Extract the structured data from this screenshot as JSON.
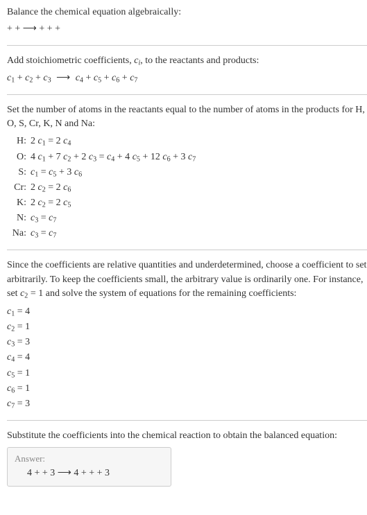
{
  "intro1": "Balance the chemical equation algebraically:",
  "intro_eq": " +  +  ⟶  +  +  + ",
  "add_line": "Add stoichiometric coefficients, ",
  "add_line2": ", to the reactants and products:",
  "ci_c": "c",
  "ci_i": "i",
  "stoich_eq_parts": {
    "c": "c",
    "plus": " + ",
    "arrow": "⟶"
  },
  "set_line1": "Set the number of atoms in the reactants equal to the number of atoms in the products for H, O, S, Cr, K, N and Na:",
  "atoms": [
    {
      "el": "H:",
      "eq": "2 c₁ = 2 c₄",
      "plain_left": "2 ",
      "v1": "1",
      "mid": " = 2 ",
      "v2": "4",
      "rest": ""
    },
    {
      "el": "O:",
      "text": "4 c₁ + 7 c₂ + 2 c₃ = c₄ + 4 c₅ + 12 c₆ + 3 c₇"
    },
    {
      "el": "S:",
      "text": "c₁ = c₅ + 3 c₆"
    },
    {
      "el": "Cr:",
      "text": "2 c₂ = 2 c₆"
    },
    {
      "el": "K:",
      "text": "2 c₂ = 2 c₅"
    },
    {
      "el": "N:",
      "text": "c₃ = c₇"
    },
    {
      "el": "Na:",
      "text": "c₃ = c₇"
    }
  ],
  "since_line": "Since the coefficients are relative quantities and underdetermined, choose a coefficient to set arbitrarily. To keep the coefficients small, the arbitrary value is ordinarily one. For instance, set ",
  "since_c2": "c",
  "since_c2_sub": "2",
  "since_line2": " = 1 and solve the system of equations for the remaining coefficients:",
  "coeffs": [
    {
      "c": "c",
      "i": "1",
      "eq": " = 4"
    },
    {
      "c": "c",
      "i": "2",
      "eq": " = 1"
    },
    {
      "c": "c",
      "i": "3",
      "eq": " = 3"
    },
    {
      "c": "c",
      "i": "4",
      "eq": " = 4"
    },
    {
      "c": "c",
      "i": "5",
      "eq": " = 1"
    },
    {
      "c": "c",
      "i": "6",
      "eq": " = 1"
    },
    {
      "c": "c",
      "i": "7",
      "eq": " = 3"
    }
  ],
  "subst_line": "Substitute the coefficients into the chemical reaction to obtain the balanced equation:",
  "answer_title": "Answer:",
  "answer_eq": "4  +  + 3  ⟶ 4  +  +  + 3 ",
  "H": {
    "label": "H:",
    "eq_l": "2 ",
    "c": "c",
    "s1": "1",
    "mid": " = 2 ",
    "s2": "4"
  },
  "O": {
    "label": "O:",
    "p": [
      {
        "t": "4 "
      },
      {
        "c": "c",
        "s": "1"
      },
      {
        "t": " + 7 "
      },
      {
        "c": "c",
        "s": "2"
      },
      {
        "t": " + 2 "
      },
      {
        "c": "c",
        "s": "3"
      },
      {
        "t": " = "
      },
      {
        "c": "c",
        "s": "4"
      },
      {
        "t": " + 4 "
      },
      {
        "c": "c",
        "s": "5"
      },
      {
        "t": " + 12 "
      },
      {
        "c": "c",
        "s": "6"
      },
      {
        "t": " + 3 "
      },
      {
        "c": "c",
        "s": "7"
      }
    ]
  },
  "S": {
    "label": "S:",
    "p": [
      {
        "c": "c",
        "s": "1"
      },
      {
        "t": " = "
      },
      {
        "c": "c",
        "s": "5"
      },
      {
        "t": " + 3 "
      },
      {
        "c": "c",
        "s": "6"
      }
    ]
  },
  "Cr": {
    "label": "Cr:",
    "p": [
      {
        "t": "2 "
      },
      {
        "c": "c",
        "s": "2"
      },
      {
        "t": " = 2 "
      },
      {
        "c": "c",
        "s": "6"
      }
    ]
  },
  "K": {
    "label": "K:",
    "p": [
      {
        "t": "2 "
      },
      {
        "c": "c",
        "s": "2"
      },
      {
        "t": " = 2 "
      },
      {
        "c": "c",
        "s": "5"
      }
    ]
  },
  "N": {
    "label": "N:",
    "p": [
      {
        "c": "c",
        "s": "3"
      },
      {
        "t": " = "
      },
      {
        "c": "c",
        "s": "7"
      }
    ]
  },
  "Na": {
    "label": "Na:",
    "p": [
      {
        "c": "c",
        "s": "3"
      },
      {
        "t": " = "
      },
      {
        "c": "c",
        "s": "7"
      }
    ]
  },
  "stoich": {
    "lhs": [
      {
        "c": "c",
        "s": "1"
      },
      {
        "c": "c",
        "s": "2"
      },
      {
        "c": "c",
        "s": "3"
      }
    ],
    "rhs": [
      {
        "c": "c",
        "s": "4"
      },
      {
        "c": "c",
        "s": "5"
      },
      {
        "c": "c",
        "s": "6"
      },
      {
        "c": "c",
        "s": "7"
      }
    ],
    "plus": " + ",
    "arrow": " ⟶ "
  }
}
